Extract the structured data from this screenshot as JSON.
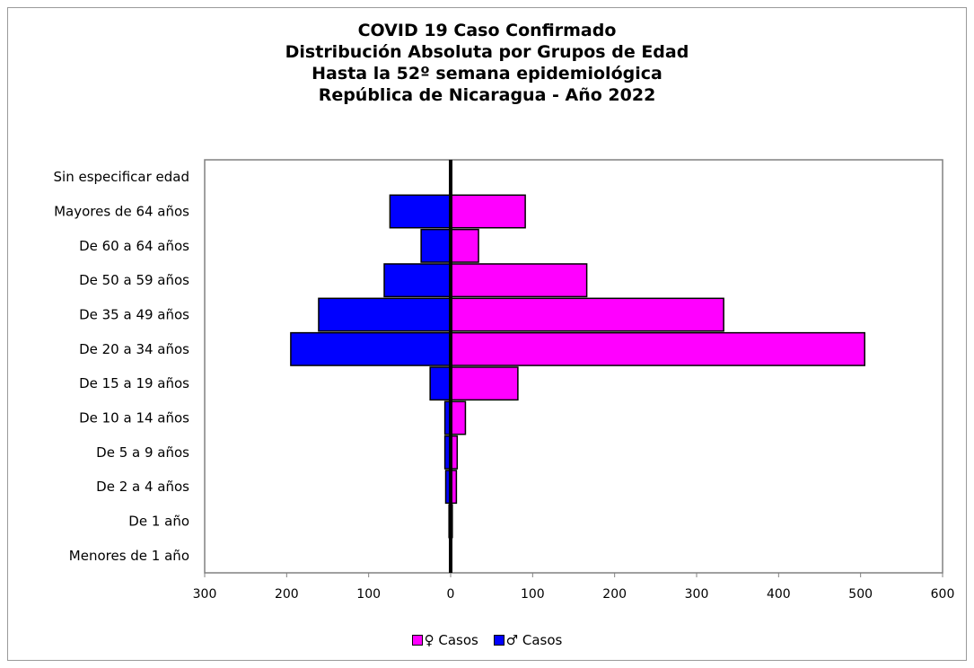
{
  "chart_data": {
    "type": "bar",
    "orientation": "horizontal",
    "title": [
      "COVID 19 Caso Confirmado",
      "Distribución Absoluta por Grupos de Edad",
      "Hasta la 52º semana epidemiológica",
      "República de Nicaragua - Año 2022"
    ],
    "categories": [
      "Sin especificar edad",
      "Mayores de 64 años",
      "De 60 a 64 años",
      "De 50 a 59 años",
      "De 35 a 49 años",
      "De 20 a 34 años",
      "De 15 a 19 años",
      "De 10 a 14 años",
      "De 5 a 9 años",
      "De 2 a 4 años",
      "De 1 año",
      "Menores de 1 año"
    ],
    "series": [
      {
        "name": "♀ Casos",
        "color": "#ff00ff",
        "side": "right",
        "values": [
          0,
          91,
          34,
          166,
          333,
          505,
          82,
          18,
          8,
          7,
          2,
          1
        ]
      },
      {
        "name": "♂ Casos",
        "color": "#0000ff",
        "side": "left",
        "values": [
          0,
          74,
          36,
          81,
          161,
          195,
          25,
          7,
          7,
          6,
          2,
          1
        ]
      }
    ],
    "xlim": [
      -300,
      600
    ],
    "xticks": [
      -300,
      -200,
      -100,
      0,
      100,
      200,
      300,
      400,
      500,
      600
    ],
    "xtick_labels": [
      "300",
      "200",
      "100",
      "0",
      "100",
      "200",
      "300",
      "400",
      "500",
      "600"
    ],
    "legend_position": "bottom",
    "grid": false
  }
}
